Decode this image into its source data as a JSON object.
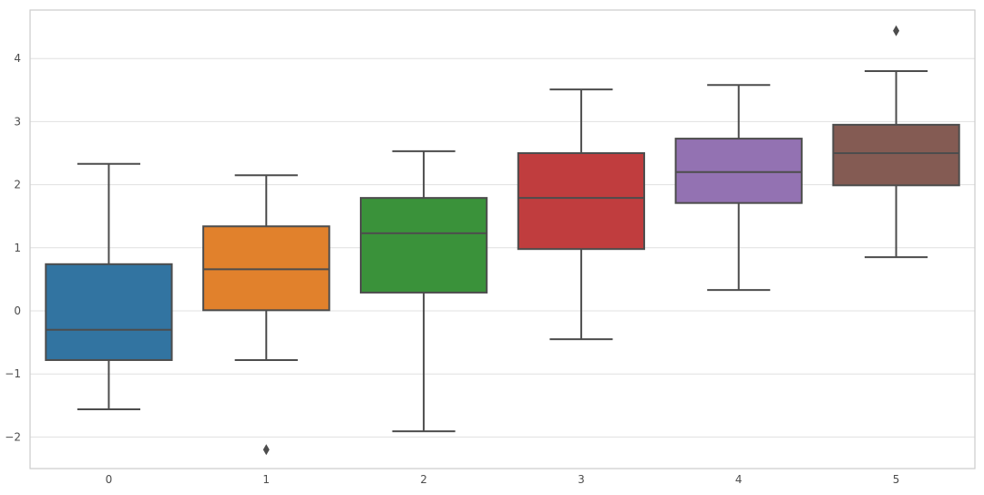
{
  "chart_data": {
    "type": "box",
    "title": "",
    "xlabel": "",
    "ylabel": "",
    "categories": [
      "0",
      "1",
      "2",
      "3",
      "4",
      "5"
    ],
    "ylim": [
      -2.5,
      4.7
    ],
    "yticks": [
      -2,
      -1,
      0,
      1,
      2,
      3,
      4
    ],
    "ytick_labels": [
      "−2",
      "−1",
      "0",
      "1",
      "2",
      "3",
      "4"
    ],
    "grid": true,
    "boxes": [
      {
        "category": "0",
        "whisker_low": -1.56,
        "q1": -0.78,
        "median": -0.3,
        "q3": 0.74,
        "whisker_high": 2.33,
        "outliers": [],
        "color": "#3274a1"
      },
      {
        "category": "1",
        "whisker_low": -0.78,
        "q1": 0.01,
        "median": 0.66,
        "q3": 1.34,
        "whisker_high": 2.15,
        "outliers": [
          -2.2
        ],
        "color": "#e1812c"
      },
      {
        "category": "2",
        "whisker_low": -1.91,
        "q1": 0.29,
        "median": 1.23,
        "q3": 1.79,
        "whisker_high": 2.53,
        "outliers": [],
        "color": "#3a923a"
      },
      {
        "category": "3",
        "whisker_low": -0.45,
        "q1": 0.98,
        "median": 1.79,
        "q3": 2.5,
        "whisker_high": 3.51,
        "outliers": [],
        "color": "#c03d3e"
      },
      {
        "category": "4",
        "whisker_low": 0.33,
        "q1": 1.71,
        "median": 2.2,
        "q3": 2.73,
        "whisker_high": 3.58,
        "outliers": [],
        "color": "#9372b2"
      },
      {
        "category": "5",
        "whisker_low": 0.85,
        "q1": 1.99,
        "median": 2.5,
        "q3": 2.95,
        "whisker_high": 3.8,
        "outliers": [
          4.44
        ],
        "color": "#845b53"
      }
    ],
    "style": {
      "edge_color": "#4d4d4d",
      "grid_color": "#e0e0e0",
      "frame_color": "#cccccc",
      "background": "#ffffff"
    }
  }
}
